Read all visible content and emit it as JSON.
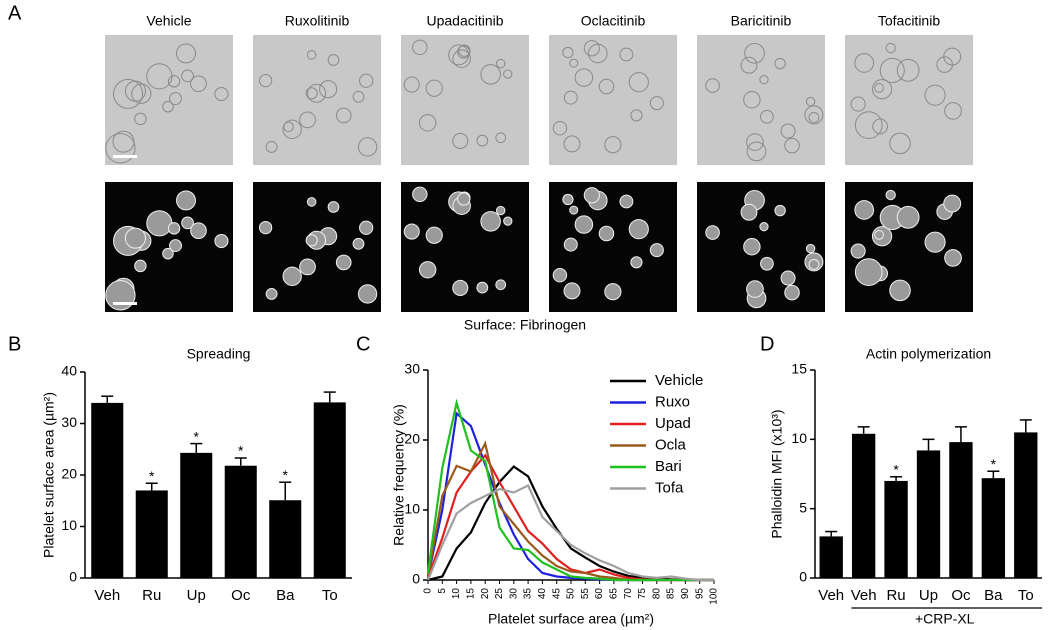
{
  "panel_labels": [
    "A",
    "B",
    "C",
    "D"
  ],
  "micrographs": {
    "columns": [
      "Vehicle",
      "Ruxolitinib",
      "Upadacitinib",
      "Oclacitinib",
      "Baricitinib",
      "Tofacitinib"
    ],
    "surface": "Surface: Fibrinogen"
  },
  "chart_data": [
    {
      "type": "bar",
      "title": "Spreading",
      "y_label": "Platelet surface area  (µm²)",
      "categories": [
        "Veh",
        "Ru",
        "Up",
        "Oc",
        "Ba",
        "To"
      ],
      "values": [
        34,
        17,
        24.3,
        21.8,
        15.1,
        34.1
      ],
      "errors": [
        1.3,
        1.4,
        1.8,
        1.5,
        3.5,
        2
      ],
      "markers": [
        null,
        "*",
        "*",
        "*",
        "*",
        null
      ],
      "color": "#000000",
      "ylim": [
        0,
        40
      ],
      "yticks": [
        0,
        10,
        20,
        30,
        40
      ]
    },
    {
      "type": "line",
      "x_label": "Platelet surface area (µm²)",
      "y_label": "Relative frequency (%)",
      "x": [
        0,
        5,
        10,
        15,
        20,
        25,
        30,
        35,
        40,
        45,
        50,
        55,
        60,
        65,
        70,
        75,
        80,
        85,
        90,
        95,
        100
      ],
      "series": [
        {
          "name": "Vehicle",
          "color": "#000000",
          "values": [
            0,
            0.5,
            4.5,
            6.8,
            11,
            14,
            16.2,
            14.8,
            10.5,
            7.3,
            4.5,
            3.2,
            2,
            1.2,
            0.6,
            0.3,
            0.2,
            0.1,
            0,
            0,
            0
          ]
        },
        {
          "name": "Ruxo",
          "color": "#1f1fe0",
          "values": [
            0.5,
            10,
            23.8,
            22,
            16.5,
            11,
            6.5,
            3,
            1,
            0.5,
            0.3,
            0.2,
            0.1,
            0,
            0,
            0,
            0,
            0,
            0,
            0,
            0
          ]
        },
        {
          "name": "Upad",
          "color": "#e01f1f",
          "values": [
            0.3,
            6,
            12.5,
            15.5,
            17.8,
            14,
            10.5,
            7,
            5.2,
            3,
            1.5,
            1,
            1.5,
            0.8,
            0.3,
            0.1,
            0,
            0,
            0,
            0,
            0
          ]
        },
        {
          "name": "Ocla",
          "color": "#9a5a1c",
          "values": [
            0.5,
            12,
            16.3,
            15.5,
            19.5,
            10.5,
            8,
            5.5,
            3.5,
            2,
            1.2,
            1,
            0.5,
            0.3,
            0,
            0,
            0,
            0,
            0,
            0,
            0
          ]
        },
        {
          "name": "Bari",
          "color": "#1fc01f",
          "values": [
            1,
            16,
            25.3,
            18.5,
            17,
            7.5,
            4.5,
            4.3,
            2.5,
            1.5,
            0.5,
            0.3,
            0.2,
            0,
            0,
            0,
            0,
            0,
            0,
            0,
            0
          ]
        },
        {
          "name": "Tofa",
          "color": "#a0a0a0",
          "values": [
            0,
            5,
            9.5,
            11,
            12,
            13,
            12.5,
            13.5,
            9,
            7,
            5,
            3.8,
            2.8,
            2,
            1,
            0.5,
            0.3,
            0.5,
            0.2,
            0,
            0
          ]
        }
      ],
      "xlim": [
        0,
        100
      ],
      "xticks": [
        0,
        5,
        10,
        15,
        20,
        25,
        30,
        35,
        40,
        45,
        50,
        55,
        60,
        65,
        70,
        75,
        80,
        85,
        90,
        95,
        100
      ],
      "ylim": [
        0,
        30
      ],
      "yticks": [
        0,
        10,
        20,
        30
      ],
      "legend": "upper right"
    },
    {
      "type": "bar",
      "title": "Actin polymerization",
      "y_label": "Phalloidin MFI (x10³)",
      "categories": [
        "Veh",
        "Veh",
        "Ru",
        "Up",
        "Oc",
        "Ba",
        "To"
      ],
      "values": [
        3,
        10.4,
        7,
        9.2,
        9.8,
        7.2,
        10.5
      ],
      "errors": [
        0.35,
        0.5,
        0.3,
        0.8,
        1.1,
        0.5,
        0.9
      ],
      "markers": [
        null,
        null,
        "*",
        null,
        null,
        "*",
        null
      ],
      "color": "#000000",
      "group_label": "+CRP-XL",
      "ylim": [
        0,
        15
      ],
      "yticks": [
        0,
        5,
        10,
        15
      ]
    }
  ]
}
